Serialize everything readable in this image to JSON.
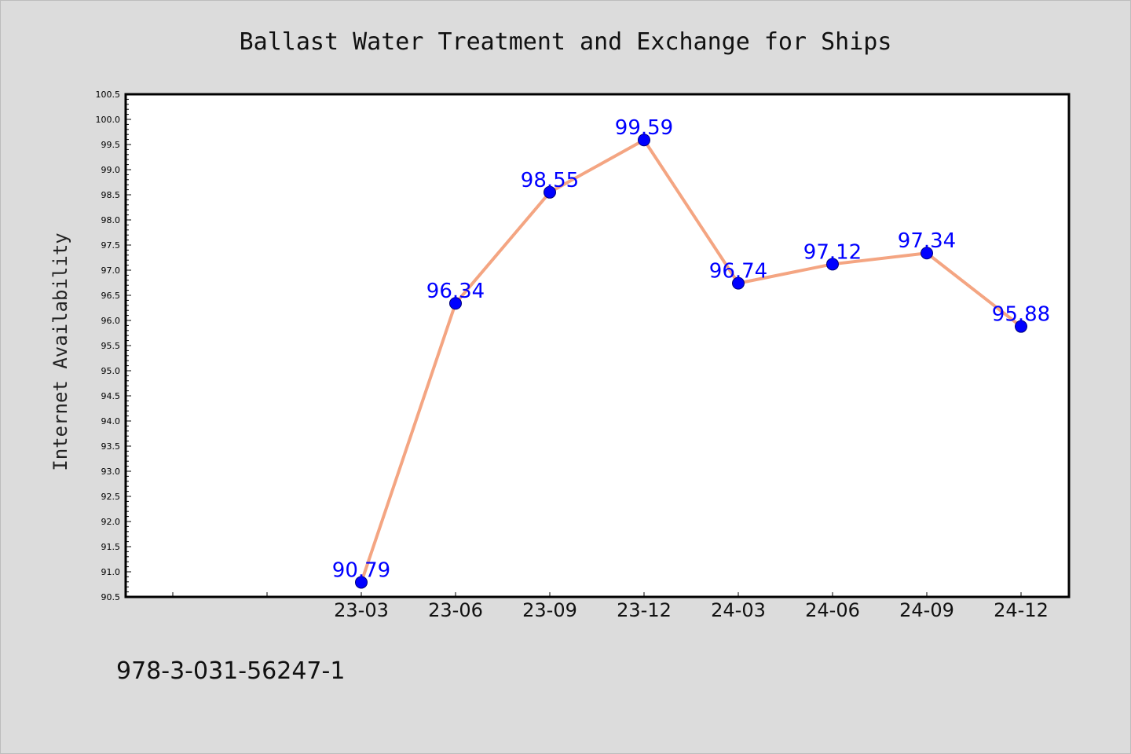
{
  "chart_data": {
    "type": "line",
    "title": "Ballast Water Treatment and Exchange for Ships",
    "xlabel": "",
    "ylabel": "Internet Availability",
    "categories": [
      "23-03",
      "23-06",
      "23-09",
      "23-12",
      "24-03",
      "24-06",
      "24-09",
      "24-12"
    ],
    "series": [
      {
        "values": [
          90.79,
          96.34,
          98.55,
          99.59,
          96.74,
          97.12,
          97.34,
          95.88
        ],
        "line_color": "#f4a582",
        "marker_color": "#0000ff",
        "label_color": "#0000ff"
      }
    ],
    "ylim": [
      90.5,
      100.5
    ],
    "ytick_step": 0.5,
    "grid": false,
    "legend": "none",
    "data_labels": true
  },
  "footer": {
    "text": "978-3-031-56247-1"
  }
}
